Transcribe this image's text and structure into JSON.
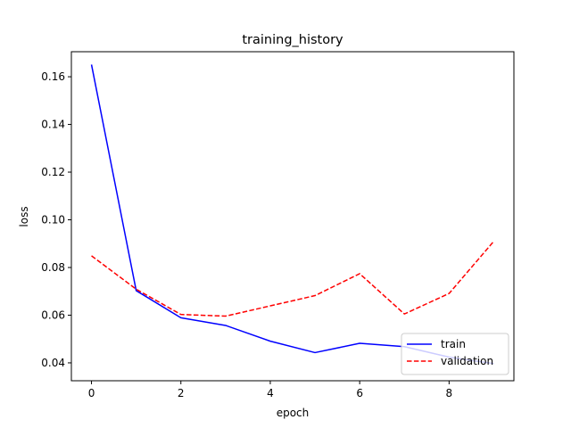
{
  "chart_data": {
    "type": "line",
    "title": "training_history",
    "xlabel": "epoch",
    "ylabel": "loss",
    "xlim": [
      -0.45,
      9.45
    ],
    "ylim": [
      0.0325,
      0.1705
    ],
    "x_ticks": [
      0,
      2,
      4,
      6,
      8
    ],
    "y_ticks": [
      0.04,
      0.06,
      0.08,
      0.1,
      0.12,
      0.14,
      0.16
    ],
    "x_tick_labels": [
      "0",
      "2",
      "4",
      "6",
      "8"
    ],
    "y_tick_labels": [
      "0.04",
      "0.06",
      "0.08",
      "0.10",
      "0.12",
      "0.14",
      "0.16"
    ],
    "x": [
      0,
      1,
      2,
      3,
      4,
      5,
      6,
      7,
      8,
      9
    ],
    "series": [
      {
        "name": "train",
        "values": [
          0.1651,
          0.0703,
          0.0589,
          0.0557,
          0.0491,
          0.0443,
          0.0482,
          0.0468,
          0.0424,
          0.0397
        ],
        "color": "#0000ff",
        "style": "solid"
      },
      {
        "name": "validation",
        "values": [
          0.0849,
          0.0709,
          0.0603,
          0.0596,
          0.0639,
          0.0682,
          0.0774,
          0.0605,
          0.0691,
          0.091
        ],
        "color": "#ff0000",
        "style": "dashed"
      }
    ],
    "grid": false,
    "legend_position": "lower right"
  }
}
